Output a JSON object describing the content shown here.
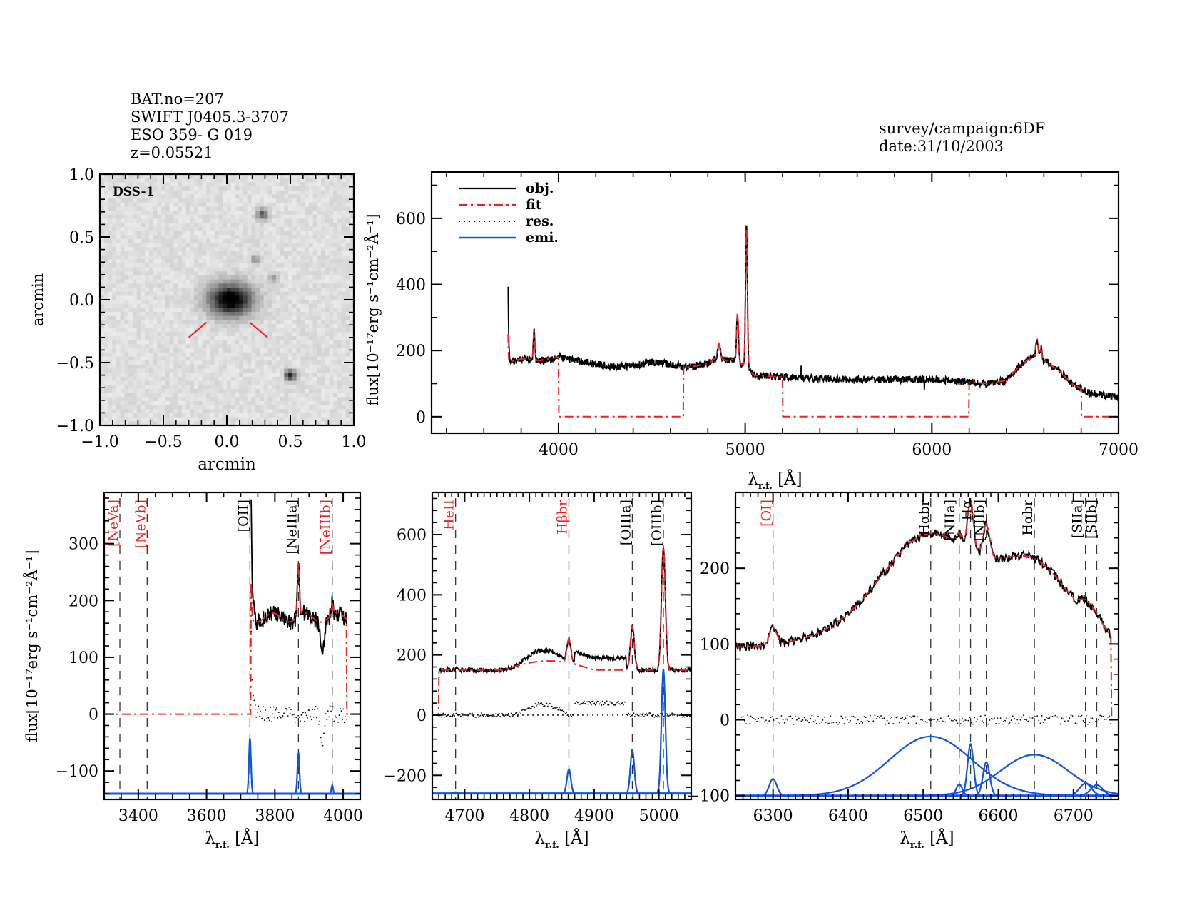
{
  "header": {
    "left": [
      "BAT.no=207",
      "SWIFT J0405.3-3707",
      "ESO 359- G 019",
      "z=0.05521"
    ],
    "right": [
      "survey/campaign:6DF",
      "date:31/10/2003"
    ]
  },
  "colors": {
    "object": "#000000",
    "fit": "#ee2222",
    "residual": "#000000",
    "emission": "#1155dd",
    "label_red": "#ee2222",
    "label_black": "#000000"
  },
  "chart_data": [
    {
      "id": "image",
      "type": "heatmap",
      "title": "DSS-1",
      "xlabel": "arcmin",
      "ylabel": "arcmin",
      "xlim": [
        -1.0,
        1.0
      ],
      "ylim": [
        -1.0,
        1.0
      ],
      "xticks": [
        "−1.0",
        "−0.5",
        "0.0",
        "0.5",
        "1.0"
      ],
      "yticks": [
        "−1.0",
        "−0.5",
        "0.0",
        "0.5",
        "1.0"
      ],
      "sources": [
        {
          "x": 0.03,
          "y": 0.0,
          "strength": 1.0,
          "size": 0.09
        },
        {
          "x": 0.28,
          "y": 0.68,
          "strength": 0.6,
          "size": 0.03
        },
        {
          "x": 0.22,
          "y": 0.32,
          "strength": 0.35,
          "size": 0.025
        },
        {
          "x": 0.37,
          "y": 0.17,
          "strength": 0.25,
          "size": 0.025
        },
        {
          "x": 0.5,
          "y": -0.6,
          "strength": 0.8,
          "size": 0.03
        }
      ],
      "marker": "target-marker"
    },
    {
      "id": "full",
      "type": "line",
      "xlabel": "λ",
      "xlabel_sub": "r.f.",
      "xlabel_unit": "[Å]",
      "ylabel": "flux[10⁻¹⁷erg s⁻¹cm⁻²Å⁻¹]",
      "xlim": [
        3320,
        7000
      ],
      "ylim": [
        -50,
        740
      ],
      "xticks": [
        4000,
        5000,
        6000,
        7000
      ],
      "yticks": [
        0,
        200,
        400,
        600
      ],
      "legend": {
        "position": "top-left",
        "entries": [
          "obj.",
          "fit",
          "res.",
          "emi."
        ]
      },
      "continuum": [
        [
          3730,
          165
        ],
        [
          3800,
          175
        ],
        [
          3900,
          170
        ],
        [
          4000,
          180
        ],
        [
          4100,
          170
        ],
        [
          4200,
          160
        ],
        [
          4300,
          150
        ],
        [
          4400,
          155
        ],
        [
          4500,
          165
        ],
        [
          4600,
          158
        ],
        [
          4700,
          150
        ],
        [
          4800,
          160
        ],
        [
          4850,
          180
        ],
        [
          4900,
          170
        ],
        [
          4950,
          175
        ],
        [
          5050,
          125
        ],
        [
          5200,
          120
        ],
        [
          5400,
          115
        ],
        [
          5600,
          112
        ],
        [
          5800,
          112
        ],
        [
          6000,
          113
        ],
        [
          6200,
          105
        ],
        [
          6300,
          100
        ],
        [
          6400,
          110
        ],
        [
          6480,
          160
        ],
        [
          6540,
          180
        ],
        [
          6600,
          170
        ],
        [
          6680,
          140
        ],
        [
          6750,
          100
        ],
        [
          6850,
          70
        ],
        [
          7000,
          60
        ]
      ],
      "lines": [
        {
          "center": 3727,
          "amp": 140,
          "sigma": 3
        },
        {
          "center": 3869,
          "amp": 90,
          "sigma": 4
        },
        {
          "center": 4861,
          "amp": 45,
          "sigma": 6
        },
        {
          "center": 4959,
          "amp": 140,
          "sigma": 5
        },
        {
          "center": 5007,
          "amp": 430,
          "sigma": 5
        },
        {
          "center": 6563,
          "amp": 60,
          "sigma": 6
        },
        {
          "center": 6584,
          "amp": 35,
          "sigma": 5
        }
      ],
      "fit_windows": [
        [
          3730,
          4000
        ],
        [
          4670,
          5200
        ],
        [
          6200,
          6800
        ]
      ]
    },
    {
      "id": "zoom1",
      "type": "line",
      "xlabel": "λ",
      "xlabel_sub": "r.f.",
      "xlabel_unit": "[Å]",
      "ylabel": "flux[10⁻¹⁷erg s⁻¹cm⁻²Å⁻¹]",
      "xlim": [
        3300,
        4050
      ],
      "ylim": [
        -150,
        390
      ],
      "xticks": [
        3400,
        3600,
        3800,
        4000
      ],
      "yticks": [
        -100,
        0,
        100,
        200,
        300
      ],
      "line_markers": [
        {
          "label": "[NeVa]",
          "wave": 3346,
          "color": "red"
        },
        {
          "label": "[NeVb]",
          "wave": 3426,
          "color": "red"
        },
        {
          "label": "[OII]",
          "wave": 3727,
          "color": "black"
        },
        {
          "label": "[NeIIIa]",
          "wave": 3869,
          "color": "black"
        },
        {
          "label": "[NeIIIb]",
          "wave": 3968,
          "color": "red"
        }
      ],
      "emission": [
        {
          "center": 3727,
          "amp": 130,
          "sigma": 3
        },
        {
          "center": 3869,
          "amp": 95,
          "sigma": 3
        },
        {
          "center": 3968,
          "amp": 20,
          "sigma": 2.5
        }
      ],
      "emission_base": -140
    },
    {
      "id": "zoom2",
      "type": "line",
      "xlabel": "λ",
      "xlabel_sub": "r.f.",
      "xlabel_unit": "[Å]",
      "xlim": [
        4650,
        5050
      ],
      "ylim": [
        -280,
        740
      ],
      "xticks": [
        4700,
        4800,
        4900,
        5000
      ],
      "yticks": [
        -200,
        0,
        200,
        400,
        600
      ],
      "line_markers": [
        {
          "label": "HeII",
          "wave": 4686,
          "color": "red"
        },
        {
          "label": "Hβbr",
          "wave": 4861,
          "color": "red"
        },
        {
          "label": "[OIIIa]",
          "wave": 4959,
          "color": "black"
        },
        {
          "label": "[OIIIb]",
          "wave": 5007,
          "color": "black"
        }
      ],
      "emission": [
        {
          "center": 4686,
          "amp": 4,
          "sigma": 3
        },
        {
          "center": 4861,
          "amp": 80,
          "sigma": 3
        },
        {
          "center": 4959,
          "amp": 145,
          "sigma": 3
        },
        {
          "center": 5007,
          "amp": 410,
          "sigma": 3
        }
      ],
      "emission_base": -260
    },
    {
      "id": "zoom3",
      "type": "line",
      "xlabel": "λ",
      "xlabel_sub": "r.f.",
      "xlabel_unit": "[Å]",
      "xlim": [
        6250,
        6760
      ],
      "ylim": [
        -105,
        300
      ],
      "xticks": [
        6300,
        6400,
        6500,
        6600,
        6700
      ],
      "yticks": [
        -100,
        0,
        100,
        200
      ],
      "line_markers": [
        {
          "label": "[OI]",
          "wave": 6300,
          "color": "red"
        },
        {
          "label": "Hαbr",
          "wave": 6510,
          "color": "black"
        },
        {
          "label": "[NIIa]",
          "wave": 6548,
          "color": "black"
        },
        {
          "label": "Hα",
          "wave": 6563,
          "color": "black"
        },
        {
          "label": "[NIIb]",
          "wave": 6584,
          "color": "black"
        },
        {
          "label": "Hαbr",
          "wave": 6648,
          "color": "black"
        },
        {
          "label": "[SIIa]",
          "wave": 6716,
          "color": "black"
        },
        {
          "label": "[SIIb]",
          "wave": 6731,
          "color": "black"
        }
      ],
      "emission": [
        {
          "center": 6300,
          "amp": 22,
          "sigma": 5
        },
        {
          "center": 6510,
          "amp": 78,
          "sigma": 55
        },
        {
          "center": 6548,
          "amp": 15,
          "sigma": 4
        },
        {
          "center": 6563,
          "amp": 68,
          "sigma": 4
        },
        {
          "center": 6584,
          "amp": 44,
          "sigma": 4.5
        },
        {
          "center": 6648,
          "amp": 54,
          "sigma": 45
        },
        {
          "center": 6716,
          "amp": 16,
          "sigma": 8
        },
        {
          "center": 6731,
          "amp": 14,
          "sigma": 8
        }
      ],
      "emission_base": -100
    }
  ]
}
